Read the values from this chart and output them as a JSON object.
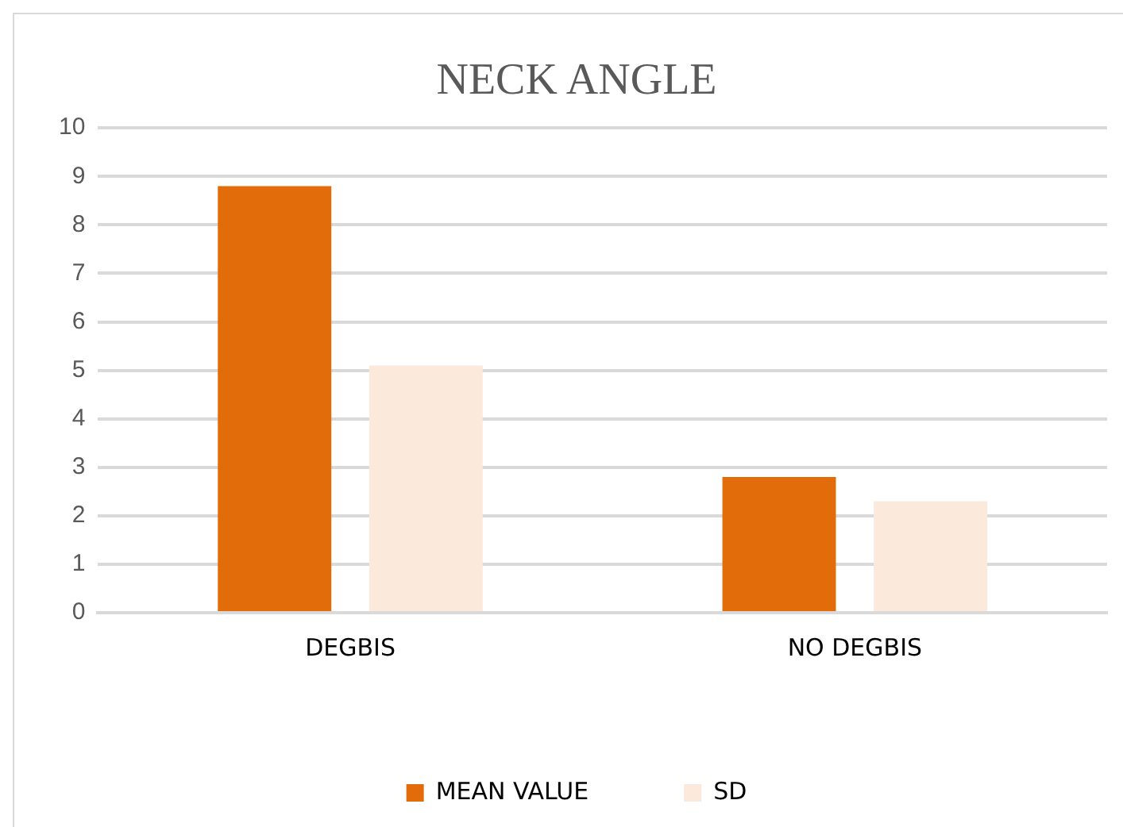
{
  "chart_data": {
    "type": "bar",
    "title": "NECK ANGLE",
    "categories": [
      "DEGBIS",
      "NO DEGBIS"
    ],
    "series": [
      {
        "name": "MEAN VALUE",
        "color": "#e36c0a",
        "values": [
          8.8,
          2.8
        ]
      },
      {
        "name": "SD",
        "color": "#fbe9db",
        "values": [
          5.1,
          2.3
        ]
      }
    ],
    "ylim": [
      0,
      10
    ],
    "yticks": [
      0,
      1,
      2,
      3,
      4,
      5,
      6,
      7,
      8,
      9,
      10
    ],
    "grid": "y",
    "legend": "bottom"
  }
}
